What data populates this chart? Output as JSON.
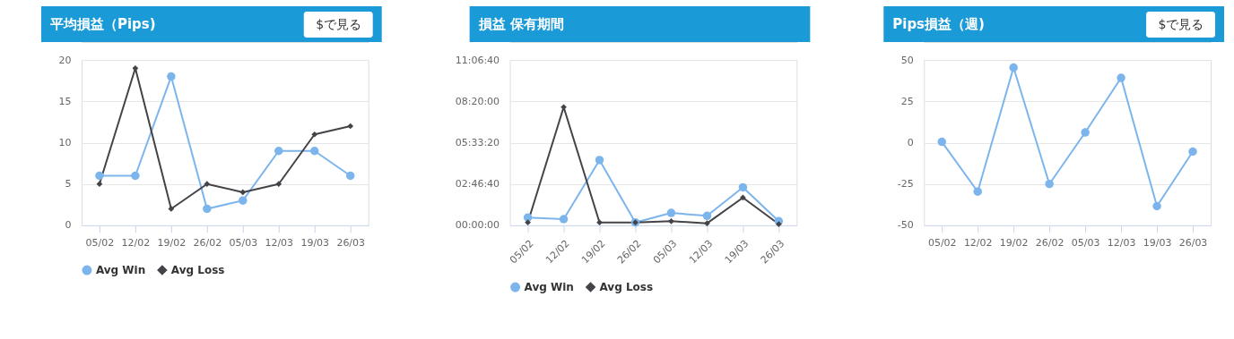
{
  "chart_data": [
    {
      "type": "line",
      "title": "平均損益（Pips)",
      "annotations": [
        "$で見る"
      ],
      "categories": [
        "05/02",
        "12/02",
        "19/02",
        "26/02",
        "05/03",
        "12/03",
        "19/03",
        "26/03"
      ],
      "series": [
        {
          "name": "Avg Win",
          "color": "#7cb5ec",
          "marker": "circle",
          "values": [
            6,
            6,
            18,
            2,
            3,
            9,
            9,
            6
          ]
        },
        {
          "name": "Avg Loss",
          "color": "#434348",
          "marker": "diamond",
          "values": [
            5,
            19,
            2,
            5,
            4,
            5,
            11,
            12
          ]
        }
      ],
      "ylim": [
        0,
        20
      ],
      "yticks": [
        0,
        5,
        10,
        15,
        20
      ],
      "grid": "y",
      "legend": "bottom"
    },
    {
      "type": "line",
      "title": "損益 保有期間",
      "categories": [
        "05/02",
        "12/02",
        "19/02",
        "26/02",
        "05/03",
        "12/03",
        "19/03",
        "26/03"
      ],
      "series": [
        {
          "name": "Avg Win",
          "color": "#7cb5ec",
          "marker": "circle",
          "values": [
            1900,
            1500,
            15800,
            700,
            3000,
            2300,
            9200,
            1000
          ]
        },
        {
          "name": "Avg Loss",
          "color": "#434348",
          "marker": "diamond",
          "values": [
            700,
            28600,
            700,
            700,
            1000,
            500,
            6700,
            300
          ]
        }
      ],
      "ylim": [
        0,
        40000
      ],
      "yticks": [
        {
          "value": 0,
          "label": "00:00:00"
        },
        {
          "value": 10000,
          "label": "02:46:40"
        },
        {
          "value": 20000,
          "label": "05:33:20"
        },
        {
          "value": 30000,
          "label": "08:20:00"
        },
        {
          "value": 40000,
          "label": "11:06:40"
        }
      ],
      "grid": "y",
      "legend": "bottom"
    },
    {
      "type": "line",
      "title": "Pips損益（週)",
      "annotations": [
        "$で見る"
      ],
      "categories": [
        "05/02",
        "12/02",
        "19/02",
        "26/02",
        "05/03",
        "12/03",
        "19/03",
        "26/03"
      ],
      "series": [
        {
          "color": "#7cb5ec",
          "marker": "circle",
          "values": [
            0.5,
            -29.6,
            45.4,
            -25,
            6.2,
            39.2,
            -38.4,
            -5.4
          ]
        }
      ],
      "ylim": [
        -50,
        50
      ],
      "yticks": [
        -50,
        -25,
        0,
        25,
        50
      ],
      "grid": "y"
    }
  ]
}
